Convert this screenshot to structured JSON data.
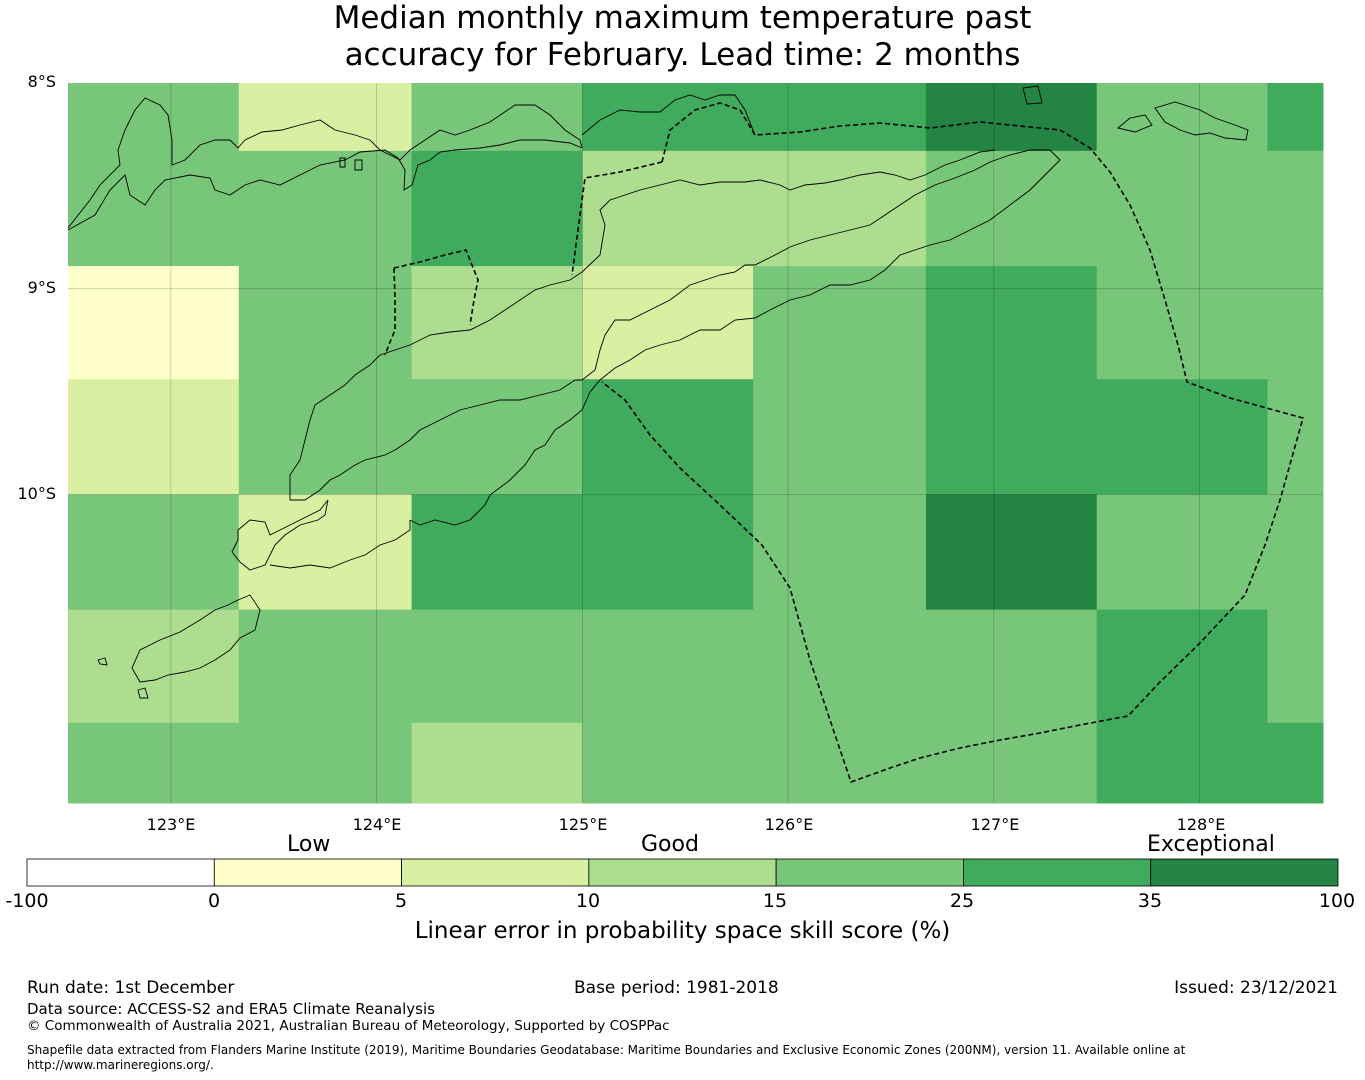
{
  "title_line1": "Median monthly maximum temperature past",
  "title_line2": "accuracy for February. Lead time: 2 months",
  "map": {
    "lat_labels": [
      "8°S",
      "9°S",
      "10°S"
    ],
    "lon_labels": [
      "123°E",
      "124°E",
      "125°E",
      "126°E",
      "127°E",
      "128°E"
    ],
    "lon_range": [
      122.5,
      128.6
    ],
    "lat_range": [
      -8.0,
      -11.5
    ],
    "grid_columns_lon_edges": [
      122.5,
      123.33,
      124.17,
      125.0,
      125.83,
      126.67,
      127.5,
      128.33,
      128.6
    ],
    "grid_rows_lat_edges": [
      -8.0,
      -8.33,
      -8.89,
      -9.44,
      -10.0,
      -10.56,
      -11.11,
      -11.5
    ],
    "cell_values": [
      [
        18,
        8,
        18,
        28,
        28,
        38,
        18,
        28
      ],
      [
        18,
        18,
        28,
        12,
        12,
        18,
        18,
        18
      ],
      [
        2,
        18,
        12,
        8,
        18,
        28,
        18,
        18
      ],
      [
        8,
        18,
        18,
        28,
        18,
        28,
        28,
        18
      ],
      [
        18,
        8,
        28,
        28,
        18,
        38,
        18,
        18
      ],
      [
        12,
        18,
        18,
        18,
        18,
        18,
        28,
        18
      ],
      [
        18,
        18,
        12,
        18,
        18,
        18,
        28,
        28
      ]
    ]
  },
  "colorbar": {
    "band_labels": [
      "Low",
      "Good",
      "Exceptional"
    ],
    "tick_labels": [
      "-100",
      "0",
      "5",
      "10",
      "15",
      "25",
      "35",
      "100"
    ],
    "colors": [
      "#ffffff",
      "#ffffcc",
      "#d9f0a3",
      "#addd8e",
      "#78c679",
      "#41ab5d",
      "#238443"
    ],
    "label": "Linear error in probability space skill score (%)"
  },
  "footer": {
    "run_date": "Run date: 1st December",
    "base_period": "Base period: 1981-2018",
    "issued": "Issued: 23/12/2021",
    "data_source": "Data source: ACCESS-S2 and ERA5 Climate Reanalysis",
    "copyright": "© Commonwealth of Australia 2021, Australian Bureau of Meteorology, Supported by COSPPac",
    "shapefile": "Shapefile data extracted from Flanders Marine Institute (2019), Maritime Boundaries Geodatabase: Maritime Boundaries and Exclusive Economic Zones (200NM), version 11. Available online at http://www.marineregions.org/."
  }
}
